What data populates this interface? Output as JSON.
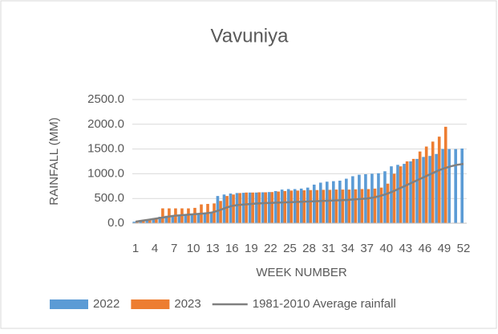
{
  "chart_data": {
    "type": "bar",
    "title": "Vavuniya",
    "y_label": "RAINFALL (MM)",
    "x_label": "WEEK NUMBER",
    "categories": [
      "1",
      null,
      null,
      "4",
      null,
      null,
      "7",
      null,
      null,
      "10",
      null,
      null,
      "13",
      null,
      null,
      "16",
      null,
      null,
      "19",
      null,
      null,
      "22",
      null,
      null,
      "25",
      null,
      null,
      "28",
      null,
      null,
      "31",
      null,
      null,
      "34",
      null,
      null,
      "37",
      null,
      null,
      "40",
      null,
      null,
      "43",
      null,
      null,
      "46",
      null,
      null,
      "49",
      null,
      null,
      "52"
    ],
    "series": [
      {
        "name": "2022",
        "type": "bar",
        "color": "#5b9bd5",
        "values": [
          30,
          60,
          80,
          100,
          130,
          150,
          160,
          170,
          180,
          190,
          200,
          210,
          220,
          550,
          580,
          600,
          610,
          615,
          620,
          620,
          625,
          630,
          650,
          680,
          690,
          690,
          700,
          720,
          780,
          820,
          840,
          850,
          860,
          900,
          950,
          980,
          990,
          1000,
          1010,
          1050,
          1150,
          1180,
          1200,
          1250,
          1300,
          1340,
          1360,
          1400,
          1500,
          1500,
          1500,
          1510
        ]
      },
      {
        "name": "2023",
        "type": "bar",
        "color": "#ed7d31",
        "values": [
          30,
          60,
          80,
          100,
          300,
          300,
          300,
          300,
          300,
          310,
          380,
          390,
          400,
          450,
          550,
          580,
          610,
          620,
          620,
          625,
          625,
          630,
          640,
          650,
          660,
          660,
          665,
          670,
          670,
          675,
          675,
          680,
          680,
          680,
          685,
          690,
          690,
          700,
          720,
          800,
          1000,
          1150,
          1250,
          1300,
          1450,
          1550,
          1650,
          1750,
          1950,
          null,
          null,
          null
        ]
      },
      {
        "name": "1981-2010 Average rainfall",
        "type": "line",
        "color": "#808080",
        "values": [
          30,
          50,
          70,
          90,
          110,
          130,
          150,
          160,
          170,
          180,
          190,
          200,
          220,
          260,
          310,
          350,
          370,
          380,
          390,
          400,
          405,
          410,
          415,
          420,
          425,
          430,
          435,
          440,
          445,
          450,
          455,
          460,
          465,
          470,
          480,
          490,
          500,
          520,
          550,
          590,
          640,
          700,
          760,
          820,
          880,
          940,
          1000,
          1060,
          1110,
          1150,
          1180,
          1200
        ]
      }
    ],
    "ylim": [
      0,
      2500
    ],
    "yticks": [
      {
        "value": 0,
        "label": "0.0"
      },
      {
        "value": 500,
        "label": "500.0"
      },
      {
        "value": 1000,
        "label": "1000.0"
      },
      {
        "value": 1500,
        "label": "1500.0"
      },
      {
        "value": 2000,
        "label": "2000.0"
      },
      {
        "value": 2500,
        "label": "2500.0"
      }
    ],
    "grid": true,
    "legend": "bottom"
  }
}
